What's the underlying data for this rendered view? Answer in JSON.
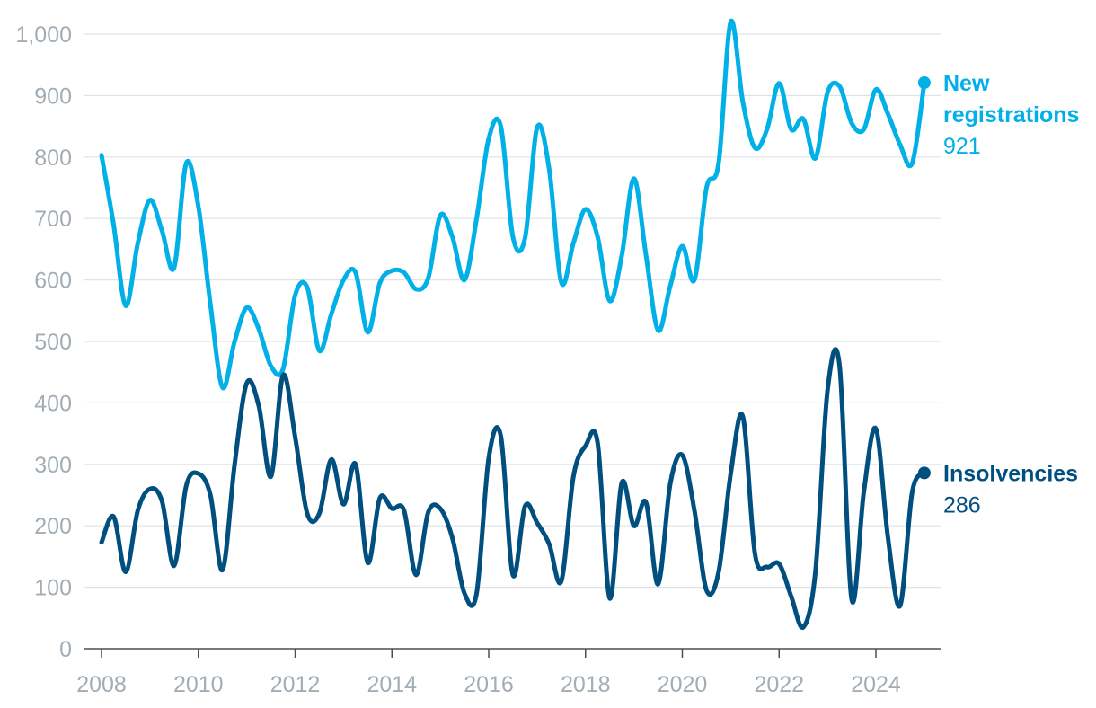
{
  "chart_data": {
    "type": "line",
    "title": "",
    "xlabel": "",
    "ylabel": "",
    "xlim": [
      2008,
      2025
    ],
    "ylim": [
      0,
      1000
    ],
    "x_ticks": [
      2008,
      2010,
      2012,
      2014,
      2016,
      2018,
      2020,
      2022,
      2024
    ],
    "x_tick_labels": [
      "2008",
      "2010",
      "2012",
      "2014",
      "2016",
      "2018",
      "2020",
      "2022",
      "2024"
    ],
    "y_ticks": [
      0,
      100,
      200,
      300,
      400,
      500,
      600,
      700,
      800,
      900,
      1000
    ],
    "y_tick_labels": [
      "0",
      "100",
      "200",
      "300",
      "400",
      "500",
      "600",
      "700",
      "800",
      "900",
      "1,000"
    ],
    "grid": "horizontal",
    "legend": "direct labels at line ends",
    "x": [
      2008.0,
      2008.25,
      2008.5,
      2008.75,
      2009.0,
      2009.25,
      2009.5,
      2009.75,
      2010.0,
      2010.25,
      2010.5,
      2010.75,
      2011.0,
      2011.25,
      2011.5,
      2011.75,
      2012.0,
      2012.25,
      2012.5,
      2012.75,
      2013.0,
      2013.25,
      2013.5,
      2013.75,
      2014.0,
      2014.25,
      2014.5,
      2014.75,
      2015.0,
      2015.25,
      2015.5,
      2015.75,
      2016.0,
      2016.25,
      2016.5,
      2016.75,
      2017.0,
      2017.25,
      2017.5,
      2017.75,
      2018.0,
      2018.25,
      2018.5,
      2018.75,
      2019.0,
      2019.25,
      2019.5,
      2019.75,
      2020.0,
      2020.25,
      2020.5,
      2020.75,
      2021.0,
      2021.25,
      2021.5,
      2021.75,
      2022.0,
      2022.25,
      2022.5,
      2022.75,
      2023.0,
      2023.25,
      2023.5,
      2023.75,
      2024.0,
      2024.25,
      2024.5,
      2024.75,
      2025.0
    ],
    "series": [
      {
        "name": "New registrations",
        "color": "#00b0e6",
        "end_label_value": "921",
        "values": [
          803,
          690,
          558,
          660,
          730,
          680,
          620,
          790,
          720,
          560,
          425,
          500,
          555,
          520,
          460,
          455,
          575,
          588,
          485,
          545,
          600,
          612,
          515,
          595,
          615,
          612,
          585,
          603,
          705,
          670,
          600,
          700,
          830,
          850,
          670,
          668,
          848,
          780,
          596,
          660,
          715,
          670,
          566,
          640,
          765,
          640,
          518,
          590,
          655,
          600,
          750,
          790,
          1020,
          890,
          815,
          845,
          920,
          845,
          862,
          798,
          905,
          915,
          855,
          845,
          910,
          870,
          820,
          790,
          921
        ]
      },
      {
        "name": "Insolvencies",
        "color": "#004f7f",
        "end_label_value": "286",
        "values": [
          173,
          215,
          125,
          225,
          260,
          240,
          135,
          265,
          285,
          250,
          128,
          300,
          432,
          395,
          280,
          445,
          345,
          220,
          220,
          308,
          235,
          300,
          140,
          245,
          228,
          225,
          120,
          222,
          228,
          180,
          90,
          90,
          310,
          346,
          120,
          232,
          205,
          170,
          110,
          280,
          330,
          335,
          82,
          270,
          200,
          238,
          105,
          268,
          315,
          225,
          95,
          125,
          285,
          378,
          155,
          133,
          138,
          85,
          35,
          125,
          420,
          460,
          80,
          255,
          358,
          180,
          70,
          255,
          286
        ]
      }
    ]
  }
}
